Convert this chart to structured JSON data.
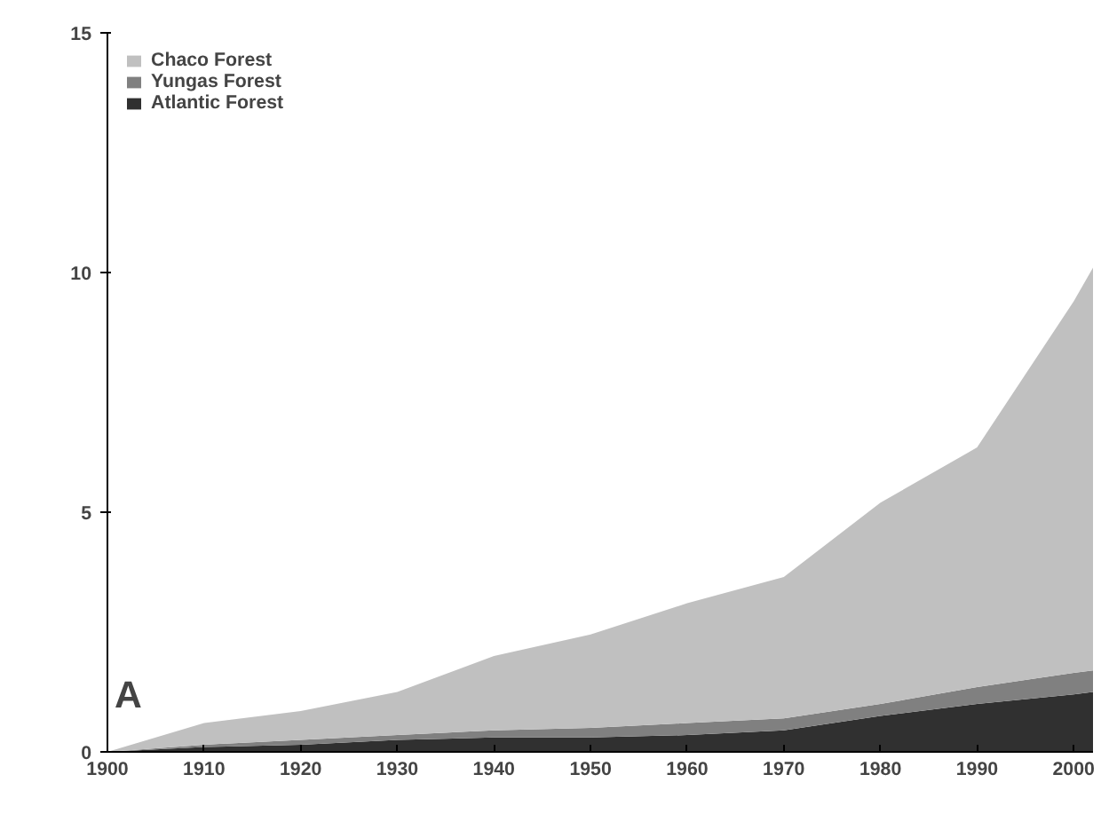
{
  "chart_data": {
    "type": "area",
    "stacked": true,
    "x": [
      1900,
      1910,
      1920,
      1930,
      1940,
      1950,
      1960,
      1970,
      1980,
      1990,
      2000,
      2002
    ],
    "series": [
      {
        "name": "Atlantic Forest",
        "color": "#303030",
        "values": [
          0,
          0.1,
          0.15,
          0.25,
          0.3,
          0.3,
          0.35,
          0.45,
          0.75,
          1.0,
          1.2,
          1.25
        ]
      },
      {
        "name": "Yungas Forest",
        "color": "#808080",
        "values": [
          0,
          0.05,
          0.1,
          0.1,
          0.15,
          0.2,
          0.25,
          0.25,
          0.25,
          0.35,
          0.45,
          0.45
        ]
      },
      {
        "name": "Chaco Forest",
        "color": "#c0c0c0",
        "values": [
          0,
          0.45,
          0.6,
          0.9,
          1.55,
          1.95,
          2.5,
          2.95,
          4.2,
          5.0,
          7.75,
          8.4
        ]
      }
    ],
    "xlim": [
      1900,
      2002
    ],
    "xticks": [
      1900,
      1910,
      1920,
      1930,
      1940,
      1950,
      1960,
      1970,
      1980,
      1990,
      2000
    ],
    "ylim": [
      0,
      15
    ],
    "yticks": [
      0,
      5,
      10,
      15
    ],
    "legend": "top left",
    "grid": false,
    "annotations": [
      "A"
    ]
  }
}
